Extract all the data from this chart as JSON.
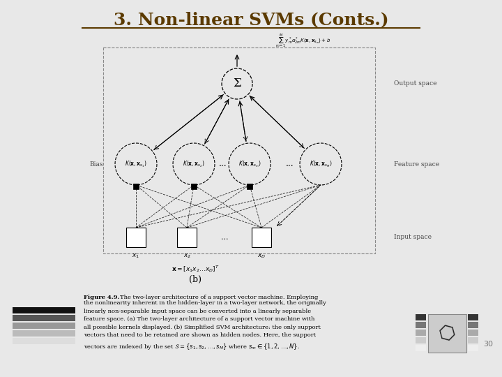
{
  "title": "3. Non-linear SVMs (Conts.)",
  "title_color": "#5B3A00",
  "title_fontsize": 18,
  "bg_color": "#E8E8E8",
  "slide_number": "30",
  "output_space_label": "Output space",
  "feature_space_label": "Feature space",
  "input_space_label": "Input space",
  "bias_label": "Bias",
  "sigma_label": "Σ",
  "kernel_label_1": "K(x, x_{s_1})",
  "kernel_label_2": "K(x, x_{s_2})",
  "kernel_label_3": "K(x, x_{s_m})",
  "kernel_label_4": "K(x, x_{s_M})",
  "input_label_1": "x_1",
  "input_label_2": "x_2",
  "input_label_3": "x_D",
  "figure_label": "(b)",
  "node_fill": "#FFFFFF",
  "node_edge": "#000000"
}
